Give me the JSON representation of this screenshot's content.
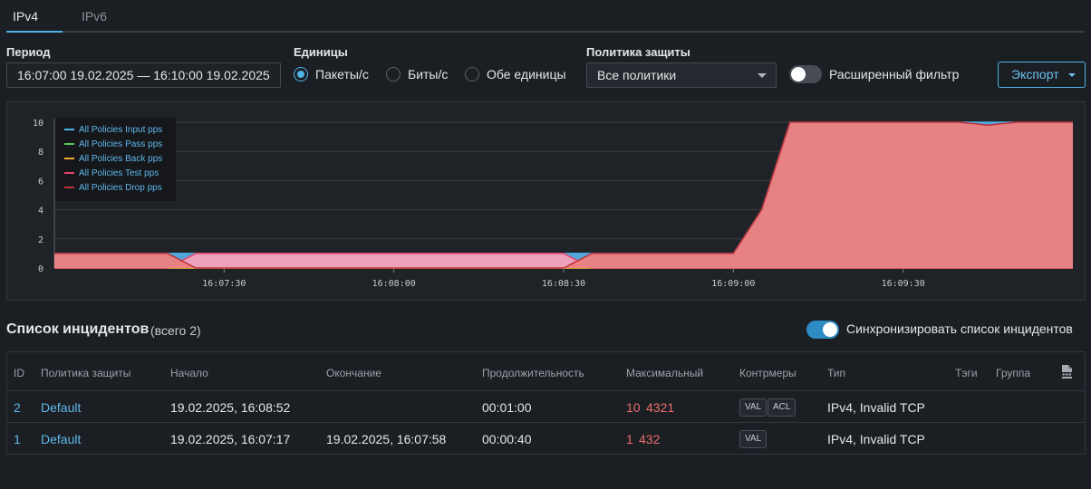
{
  "tabs": [
    {
      "label": "IPv4",
      "active": true
    },
    {
      "label": "IPv6",
      "active": false
    }
  ],
  "filters": {
    "period_label": "Период",
    "period_value": "16:07:00 19.02.2025  —  16:10:00 19.02.2025",
    "units_label": "Единицы",
    "units_options": [
      {
        "label": "Пакеты/с",
        "checked": true
      },
      {
        "label": "Биты/с",
        "checked": false
      },
      {
        "label": "Обе единицы",
        "checked": false
      }
    ],
    "policy_label": "Политика защиты",
    "policy_value": "Все политики",
    "advanced_filter_label": "Расширенный фильтр",
    "advanced_filter_on": false,
    "export_label": "Экспорт"
  },
  "chart_data": {
    "type": "area",
    "x": [
      "16:07:00",
      "16:07:10",
      "16:07:20",
      "16:07:25",
      "16:07:30",
      "16:07:40",
      "16:07:50",
      "16:08:00",
      "16:08:10",
      "16:08:20",
      "16:08:30",
      "16:08:35",
      "16:08:40",
      "16:08:45",
      "16:08:50",
      "16:08:55",
      "16:09:00",
      "16:09:05",
      "16:09:10",
      "16:09:15",
      "16:09:20",
      "16:09:30",
      "16:09:40",
      "16:09:45",
      "16:09:50",
      "16:10:00"
    ],
    "x_ticks": [
      "16:07:30",
      "16:08:00",
      "16:08:30",
      "16:09:00",
      "16:09:30"
    ],
    "y_ticks": [
      0,
      2,
      4,
      6,
      8,
      10
    ],
    "ylim": [
      0,
      10
    ],
    "series": [
      {
        "name": "All Policies Input pps",
        "color": "#4fb3e8",
        "values": [
          1,
          1,
          1,
          1,
          1,
          1,
          1,
          1,
          1,
          1,
          1,
          1,
          1,
          1,
          1,
          1,
          1,
          4,
          10,
          10,
          10,
          10,
          10,
          10,
          10,
          10
        ]
      },
      {
        "name": "All Policies Pass pps",
        "color": "#5cc85c",
        "values": [
          0,
          0,
          0,
          0,
          0,
          0,
          0,
          0,
          0,
          0,
          0,
          0,
          0,
          0,
          0,
          0,
          0,
          0,
          0,
          0,
          0,
          0,
          0,
          0,
          0,
          0
        ]
      },
      {
        "name": "All Policies Back pps",
        "color": "#f0a830",
        "values": [
          0,
          0,
          0,
          0,
          0,
          0,
          0,
          0,
          0,
          0,
          0,
          0,
          0,
          0,
          0,
          0,
          0,
          0,
          0,
          0,
          0,
          0,
          0,
          0,
          0,
          0
        ]
      },
      {
        "name": "All Policies Test pps",
        "color": "#e8456e",
        "values": [
          0,
          0,
          0,
          1,
          1,
          1,
          1,
          1,
          1,
          1,
          1,
          0,
          0,
          0,
          0,
          0,
          0,
          0,
          0,
          0,
          0,
          0,
          0,
          0,
          0,
          0
        ]
      },
      {
        "name": "All Policies Drop pps",
        "color": "#c0303a",
        "values": [
          1,
          1,
          1,
          0,
          0,
          0,
          0,
          0,
          0,
          0,
          0,
          1,
          1,
          1,
          1,
          1,
          1,
          4,
          10,
          10,
          10,
          10,
          10,
          9.8,
          10,
          10
        ]
      }
    ],
    "legend_position": "top-left",
    "grid": true
  },
  "incidents": {
    "title": "Список инцидентов",
    "count_label": "(всего 2)",
    "sync_label": "Синхронизировать список инцидентов",
    "sync_on": true,
    "columns": [
      "ID",
      "Политика защиты",
      "Начало",
      "Окончание",
      "Продолжительность",
      "Максимальный",
      "Контрмеры",
      "Тип",
      "Тэги",
      "Группа"
    ],
    "rows": [
      {
        "id": "2",
        "policy": "Default",
        "start": "19.02.2025, 16:08:52",
        "end": "",
        "duration": "00:01:00",
        "max_a": "10",
        "max_b": "4321",
        "counter": [
          "VAL",
          "ACL"
        ],
        "type": "IPv4, Invalid TCP"
      },
      {
        "id": "1",
        "policy": "Default",
        "start": "19.02.2025, 16:07:17",
        "end": "19.02.2025, 16:07:58",
        "duration": "00:00:40",
        "max_a": "1",
        "max_b": "432",
        "counter": [
          "VAL"
        ],
        "type": "IPv4, Invalid TCP"
      }
    ]
  }
}
